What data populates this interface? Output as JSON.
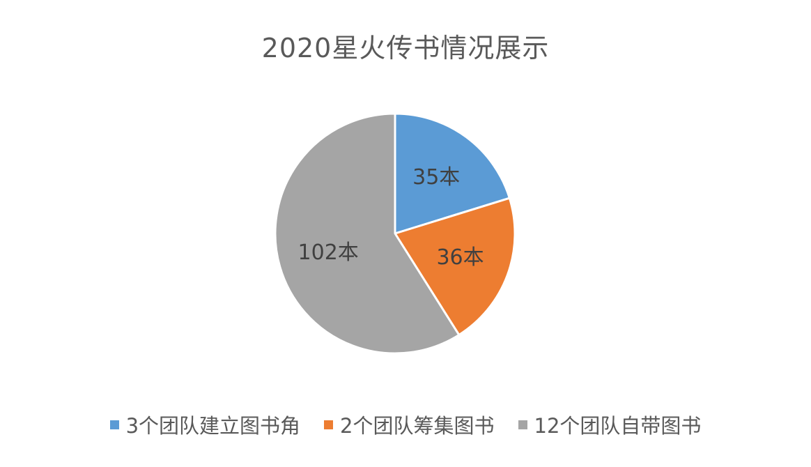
{
  "chart_data": {
    "type": "pie",
    "title": "2020星火传书情况展示",
    "categories": [
      "3个团队建立图书角",
      "2个团队筹集图书",
      "12个团队自带图书"
    ],
    "values": [
      35,
      36,
      102
    ],
    "labels": [
      "35本",
      "36本",
      "102本"
    ],
    "colors": [
      "#5B9BD5",
      "#ED7D31",
      "#A5A5A5"
    ],
    "start_angle_deg": 0,
    "direction": "clockwise",
    "legend_position": "bottom"
  }
}
